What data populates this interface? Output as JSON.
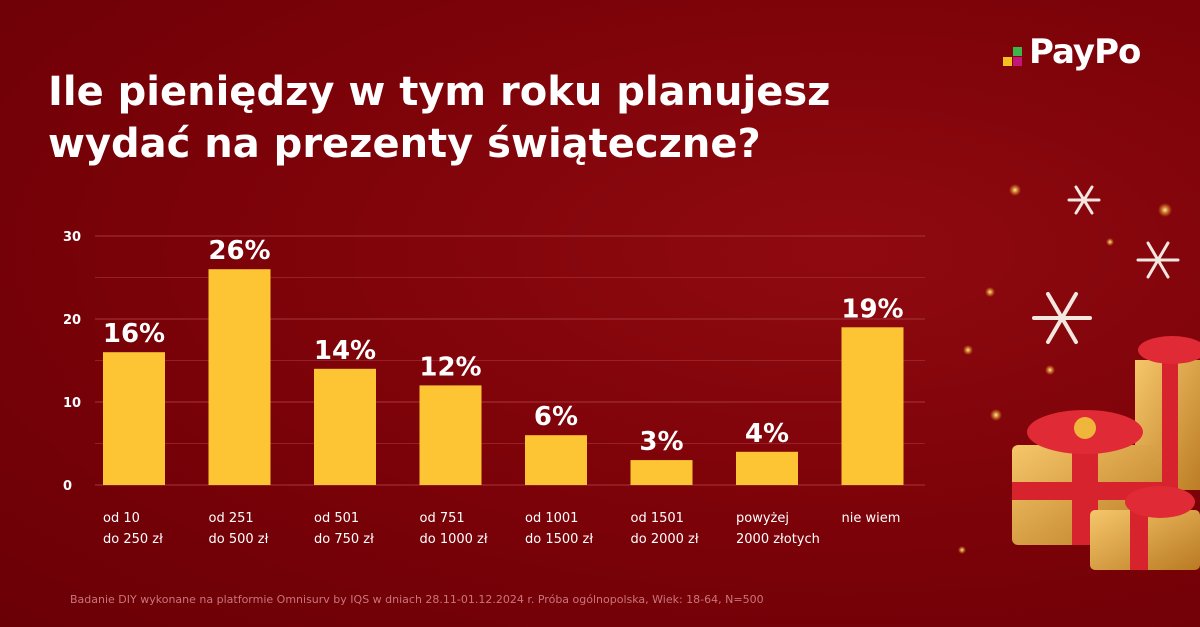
{
  "brand": {
    "name": "PayPo",
    "mark_colors": [
      "#f4c21f",
      "#3cb54a",
      "#c4157a"
    ]
  },
  "title_lines": [
    "Ile pieniędzy w tym roku planujesz",
    "wydać na prezenty świąteczne?"
  ],
  "chart_data": {
    "type": "bar",
    "categories": [
      [
        "od 10",
        "do 250 zł"
      ],
      [
        "od 251",
        "do 500 zł"
      ],
      [
        "od 501",
        "do 750 zł"
      ],
      [
        "od 751",
        "do 1000 zł"
      ],
      [
        "od 1001",
        "do 1500 zł"
      ],
      [
        "od 1501",
        "do 2000 zł"
      ],
      [
        "powyżej",
        "2000 złotych"
      ],
      [
        "nie wiem"
      ]
    ],
    "values": [
      16,
      26,
      14,
      12,
      6,
      3,
      4,
      19
    ],
    "value_labels": [
      "16%",
      "26%",
      "14%",
      "12%",
      "6%",
      "3%",
      "4%",
      "19%"
    ],
    "yticks": [
      0,
      10,
      20,
      30
    ],
    "ylim": [
      0,
      30
    ],
    "grid": true,
    "bar_color": "#fdc534",
    "grid_color": "#a8343a"
  },
  "footnote": "Badanie DIY wykonane na platformie Omnisurv by IQS w dniach 28.11-01.12.2024 r. Próba ogólnopolska, Wiek: 18-64, N=500"
}
